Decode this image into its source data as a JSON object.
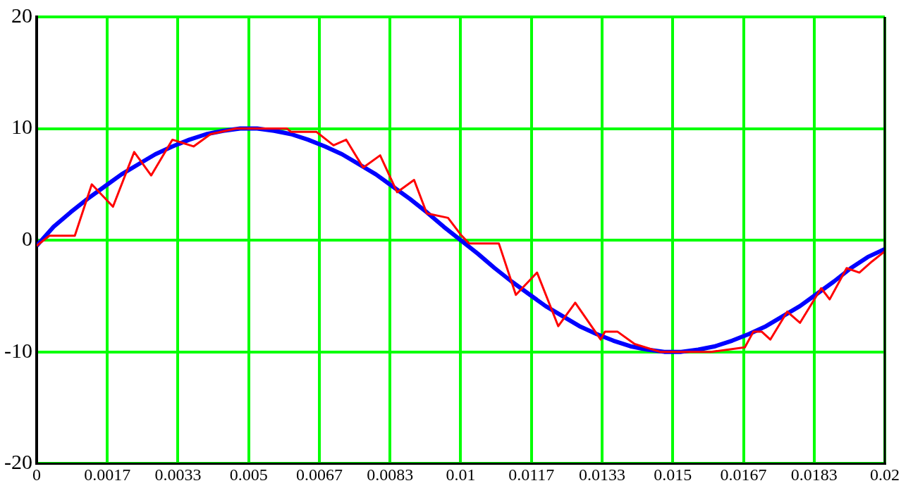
{
  "chart_data": {
    "type": "line",
    "xlim": [
      0,
      0.02
    ],
    "ylim": [
      -20,
      20
    ],
    "xticks": [
      0,
      {
        "value": 0.0016667,
        "label": "0.0017"
      },
      {
        "value": 0.0033333,
        "label": "0.0033"
      },
      0.005,
      {
        "value": 0.0066667,
        "label": "0.0067"
      },
      {
        "value": 0.0083333,
        "label": "0.0083"
      },
      0.01,
      {
        "value": 0.0116667,
        "label": "0.0117"
      },
      {
        "value": 0.0133333,
        "label": "0.0133"
      },
      0.015,
      {
        "value": 0.0166667,
        "label": "0.0167"
      },
      {
        "value": 0.0183333,
        "label": "0.0183"
      },
      0.02
    ],
    "yticks": [
      -20,
      -10,
      0,
      10,
      20
    ],
    "grid": true,
    "legend": false,
    "marker": "none",
    "line_style": "solid",
    "series": [
      {
        "color": "#0000ff",
        "x": [
          0,
          0.0004,
          0.0008,
          0.0012,
          0.0016,
          0.002,
          0.0024,
          0.0028,
          0.0032,
          0.0036,
          0.004,
          0.0044,
          0.0048,
          0.0052,
          0.0056,
          0.006,
          0.0064,
          0.0068,
          0.0072,
          0.0076,
          0.008,
          0.0084,
          0.0088,
          0.0092,
          0.0096,
          0.01,
          0.0104,
          0.0108,
          0.0112,
          0.0116,
          0.012,
          0.0124,
          0.0128,
          0.0132,
          0.0136,
          0.014,
          0.0144,
          0.0148,
          0.0152,
          0.0156,
          0.016,
          0.0164,
          0.0168,
          0.0172,
          0.0176,
          0.018,
          0.0184,
          0.0188,
          0.0192,
          0.0196,
          0.02
        ],
        "values": [
          -0.5,
          1.2,
          2.5,
          3.7,
          4.8,
          5.9,
          6.8,
          7.7,
          8.4,
          9.0,
          9.5,
          9.8,
          10,
          10,
          9.8,
          9.5,
          9.0,
          8.4,
          7.7,
          6.8,
          5.9,
          4.8,
          3.7,
          2.5,
          1.2,
          0,
          -1.2,
          -2.5,
          -3.7,
          -4.8,
          -5.9,
          -6.8,
          -7.7,
          -8.4,
          -9.0,
          -9.5,
          -9.8,
          -10,
          -10,
          -9.8,
          -9.5,
          -9.0,
          -8.4,
          -7.7,
          -6.8,
          -5.9,
          -4.8,
          -3.7,
          -2.5,
          -1.5,
          -0.8
        ]
      },
      {
        "color": "#ff0000",
        "x": [
          0,
          0.0003,
          0.0009,
          0.0013,
          0.0018,
          0.0023,
          0.0027,
          0.0032,
          0.0037,
          0.0041,
          0.0047,
          0.0059,
          0.006,
          0.0066,
          0.007,
          0.0073,
          0.0077,
          0.0081,
          0.0085,
          0.0089,
          0.0092,
          0.0097,
          0.01,
          0.0102,
          0.0109,
          0.0113,
          0.0118,
          0.0123,
          0.0127,
          0.0133,
          0.0134,
          0.0137,
          0.0141,
          0.0147,
          0.0159,
          0.0167,
          0.0169,
          0.0171,
          0.0173,
          0.0177,
          0.018,
          0.0185,
          0.0187,
          0.0191,
          0.0194,
          0.0197,
          0.02
        ],
        "values": [
          -0.5,
          0.4,
          0.4,
          5.0,
          3.0,
          7.9,
          5.8,
          9.0,
          8.4,
          9.5,
          10,
          10,
          9.7,
          9.7,
          8.5,
          9.0,
          6.5,
          7.6,
          4.3,
          5.4,
          2.4,
          2.0,
          0.5,
          -0.3,
          -0.3,
          -4.9,
          -2.9,
          -7.7,
          -5.6,
          -8.9,
          -8.2,
          -8.2,
          -9.3,
          -10,
          -10,
          -9.6,
          -8.2,
          -8.2,
          -8.9,
          -6.4,
          -7.4,
          -4.3,
          -5.3,
          -2.5,
          -2.9,
          -1.9,
          -1.0
        ]
      }
    ]
  }
}
